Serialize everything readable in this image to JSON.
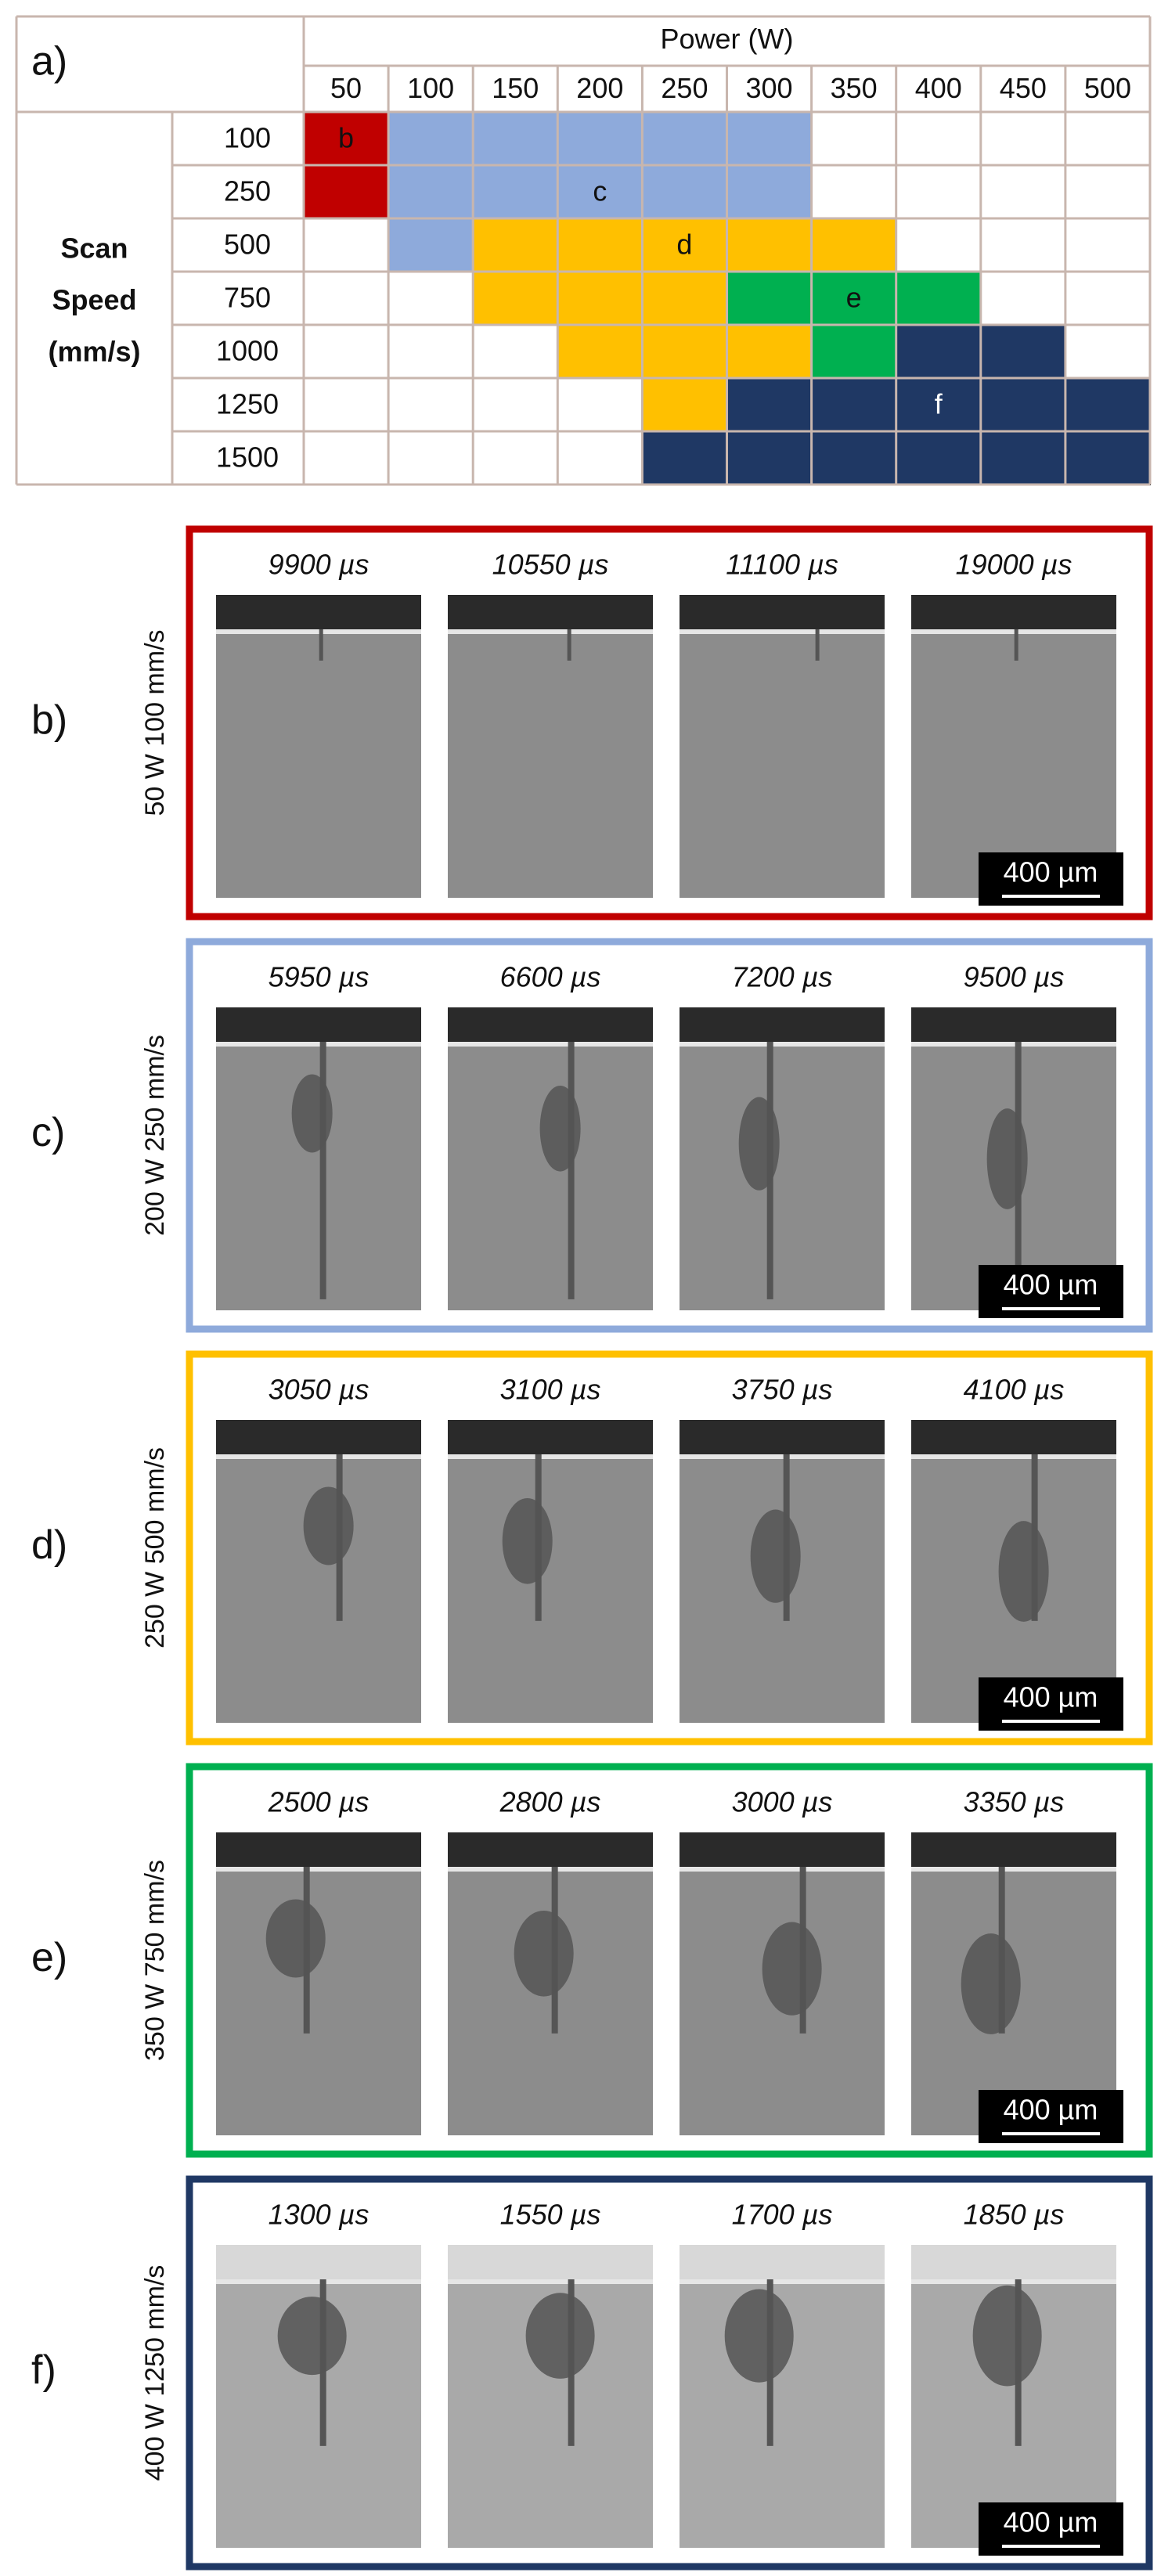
{
  "figure": {
    "table": {
      "label": "a)",
      "power_title": "Power (W)",
      "powers": [
        50,
        100,
        150,
        200,
        250,
        300,
        350,
        400,
        450,
        500
      ],
      "speed_title": [
        "Scan",
        "Speed",
        "(mm/s)"
      ],
      "speeds": [
        100,
        250,
        500,
        750,
        1000,
        1250,
        1500
      ],
      "cells": [
        [
          "#c00000",
          "#8eaadb",
          "#8eaadb",
          "#8eaadb",
          "#8eaadb",
          "#8eaadb",
          null,
          null,
          null,
          null
        ],
        [
          "#c00000",
          "#8eaadb",
          "#8eaadb",
          "#8eaadb",
          "#8eaadb",
          "#8eaadb",
          null,
          null,
          null,
          null
        ],
        [
          null,
          "#8eaadb",
          "#ffc000",
          "#ffc000",
          "#ffc000",
          "#ffc000",
          "#ffc000",
          null,
          null,
          null
        ],
        [
          null,
          null,
          "#ffc000",
          "#ffc000",
          "#ffc000",
          "#00b050",
          "#00b050",
          "#00b050",
          null,
          null
        ],
        [
          null,
          null,
          null,
          "#ffc000",
          "#ffc000",
          "#ffc000",
          "#00b050",
          "#1f3864",
          "#1f3864",
          null
        ],
        [
          null,
          null,
          null,
          null,
          "#ffc000",
          "#1f3864",
          "#1f3864",
          "#1f3864",
          "#1f3864",
          "#1f3864"
        ],
        [
          null,
          null,
          null,
          null,
          "#1f3864",
          "#1f3864",
          "#1f3864",
          "#1f3864",
          "#1f3864",
          "#1f3864"
        ]
      ],
      "cell_labels": [
        {
          "text": "b",
          "row": 0,
          "col": 0
        },
        {
          "text": "c",
          "row": 1,
          "col": 3
        },
        {
          "text": "d",
          "row": 2,
          "col": 4
        },
        {
          "text": "e",
          "row": 3,
          "col": 6
        },
        {
          "text": "f",
          "row": 5,
          "col": 7
        }
      ]
    },
    "panels": [
      {
        "label": "b)",
        "condition": "50 W 100 mm/s",
        "color": "#c00000",
        "times": [
          "9900 µs",
          "10550 µs",
          "11100 µs",
          "19000 µs"
        ],
        "scale": "400 µm"
      },
      {
        "label": "c)",
        "condition": "200 W 250 mm/s",
        "color": "#8eaadb",
        "times": [
          "5950 µs",
          "6600 µs",
          "7200 µs",
          "9500 µs"
        ],
        "scale": "400 µm"
      },
      {
        "label": "d)",
        "condition": "250 W 500 mm/s",
        "color": "#ffc000",
        "times": [
          "3050 µs",
          "3100 µs",
          "3750 µs",
          "4100 µs"
        ],
        "scale": "400 µm"
      },
      {
        "label": "e)",
        "condition": "350 W 750 mm/s",
        "color": "#00b050",
        "times": [
          "2500 µs",
          "2800 µs",
          "3000 µs",
          "3350 µs"
        ],
        "scale": "400 µm"
      },
      {
        "label": "f)",
        "condition": "400 W 1250 mm/s",
        "color": "#1f3864",
        "times": [
          "1300 µs",
          "1550 µs",
          "1700 µs",
          "1850 µs"
        ],
        "scale": "400 µm"
      }
    ]
  }
}
